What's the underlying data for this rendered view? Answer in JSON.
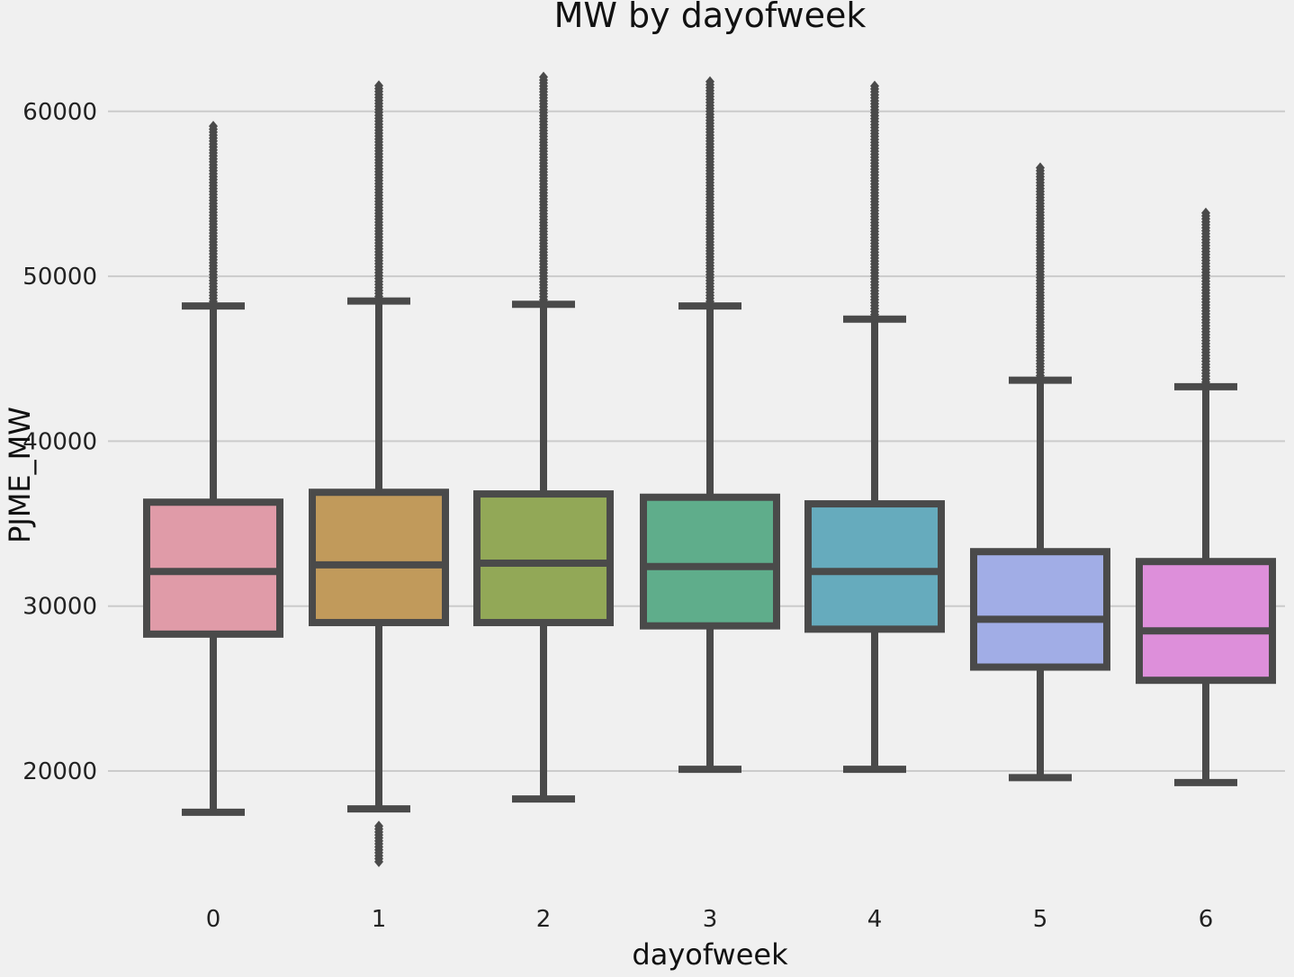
{
  "chart_data": {
    "type": "box",
    "title": "MW by dayofweek",
    "xlabel": "dayofweek",
    "ylabel": "PJME_MW",
    "ylim": [
      13000,
      63500
    ],
    "yticks": [
      20000,
      30000,
      40000,
      50000,
      60000
    ],
    "grid": true,
    "categories": [
      "0",
      "1",
      "2",
      "3",
      "4",
      "5",
      "6"
    ],
    "boxes": [
      {
        "category": "0",
        "color": "#e09ba8",
        "whisker_low": 17500,
        "q1": 28300,
        "median": 32100,
        "q3": 36300,
        "whisker_high": 48200,
        "outliers_low": [],
        "outliers_high_range": [
          48300,
          59200
        ]
      },
      {
        "category": "1",
        "color": "#c19a5b",
        "whisker_low": 17700,
        "q1": 29000,
        "median": 32500,
        "q3": 36900,
        "whisker_high": 48500,
        "outliers_low": [
          14500,
          16800
        ],
        "outliers_high_range": [
          48600,
          61700
        ]
      },
      {
        "category": "2",
        "color": "#92a857",
        "whisker_low": 18300,
        "q1": 29000,
        "median": 32600,
        "q3": 36800,
        "whisker_high": 48300,
        "outliers_low": [],
        "outliers_high_range": [
          48400,
          62100
        ]
      },
      {
        "category": "3",
        "color": "#5fad8b",
        "whisker_low": 20100,
        "q1": 28800,
        "median": 32400,
        "q3": 36600,
        "whisker_high": 48200,
        "outliers_low": [],
        "outliers_high_range": [
          48300,
          61800
        ]
      },
      {
        "category": "4",
        "color": "#66abbd",
        "whisker_low": 20100,
        "q1": 28600,
        "median": 32100,
        "q3": 36200,
        "whisker_high": 47400,
        "outliers_low": [],
        "outliers_high_range": [
          47500,
          61700
        ]
      },
      {
        "category": "5",
        "color": "#a1ade6",
        "whisker_low": 19600,
        "q1": 26300,
        "median": 29200,
        "q3": 33300,
        "whisker_high": 43700,
        "outliers_low": [],
        "outliers_high_range": [
          43800,
          56600
        ]
      },
      {
        "category": "6",
        "color": "#dd8fda",
        "whisker_low": 19300,
        "q1": 25500,
        "median": 28500,
        "q3": 32700,
        "whisker_high": 43300,
        "outliers_low": [],
        "outliers_high_range": [
          43400,
          54000
        ]
      }
    ]
  }
}
